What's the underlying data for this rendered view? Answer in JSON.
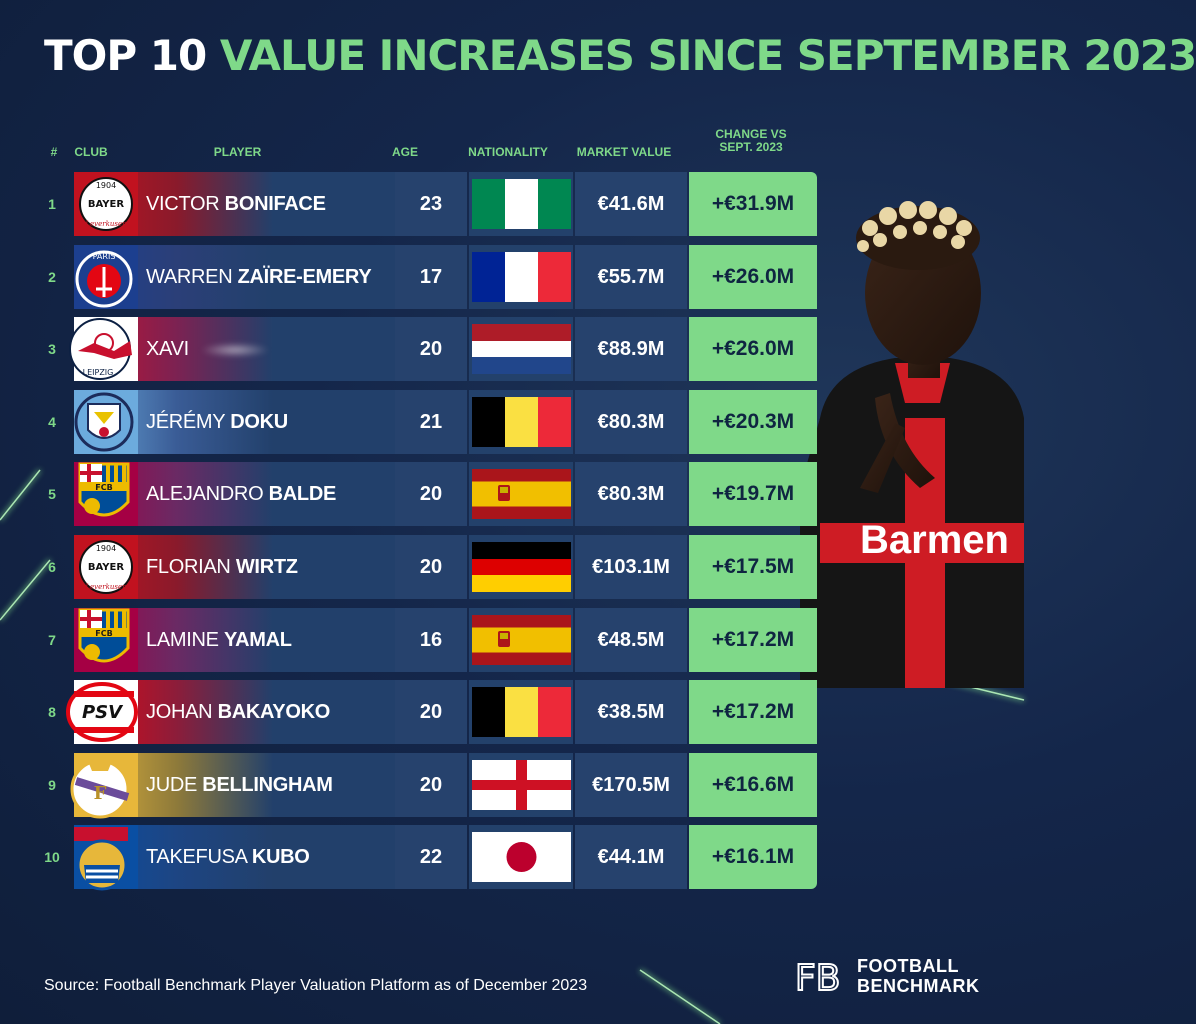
{
  "title": {
    "part1": "TOP 10",
    "part2": "VALUE INCREASES SINCE SEPTEMBER 2023"
  },
  "headers": {
    "rank": "#",
    "club": "CLUB",
    "player": "PLAYER",
    "age": "AGE",
    "nationality": "NATIONALITY",
    "market_value": "MARKET VALUE",
    "change_line1": "CHANGE VS",
    "change_line2": "SEPT. 2023"
  },
  "chart_data": {
    "type": "table",
    "title": "TOP 10 VALUE INCREASES SINCE SEPTEMBER 2023",
    "columns": [
      "#",
      "CLUB",
      "PLAYER",
      "AGE",
      "NATIONALITY",
      "MARKET VALUE",
      "CHANGE VS SEPT. 2023"
    ],
    "rows": [
      {
        "rank": "1",
        "club": "Bayer Leverkusen",
        "first": "VICTOR",
        "last": "BONIFACE",
        "age": "23",
        "nationality": "Nigeria",
        "market_value": "€41.6M",
        "change": "+€31.9M"
      },
      {
        "rank": "2",
        "club": "Paris Saint-Germain",
        "first": "WARREN",
        "last": "ZAÏRE-EMERY",
        "age": "17",
        "nationality": "France",
        "market_value": "€55.7M",
        "change": "+€26.0M"
      },
      {
        "rank": "3",
        "club": "RB Leipzig",
        "first": "XAVI",
        "last": "",
        "age": "20",
        "nationality": "Netherlands",
        "market_value": "€88.9M",
        "change": "+€26.0M"
      },
      {
        "rank": "4",
        "club": "Manchester City",
        "first": "JÉRÉMY",
        "last": "DOKU",
        "age": "21",
        "nationality": "Belgium",
        "market_value": "€80.3M",
        "change": "+€20.3M"
      },
      {
        "rank": "5",
        "club": "FC Barcelona",
        "first": "ALEJANDRO",
        "last": "BALDE",
        "age": "20",
        "nationality": "Spain",
        "market_value": "€80.3M",
        "change": "+€19.7M"
      },
      {
        "rank": "6",
        "club": "Bayer Leverkusen",
        "first": "FLORIAN",
        "last": "WIRTZ",
        "age": "20",
        "nationality": "Germany",
        "market_value": "€103.1M",
        "change": "+€17.5M"
      },
      {
        "rank": "7",
        "club": "FC Barcelona",
        "first": "LAMINE",
        "last": "YAMAL",
        "age": "16",
        "nationality": "Spain",
        "market_value": "€48.5M",
        "change": "+€17.2M"
      },
      {
        "rank": "8",
        "club": "PSV",
        "first": "JOHAN",
        "last": "BAKAYOKO",
        "age": "20",
        "nationality": "Belgium",
        "market_value": "€38.5M",
        "change": "+€17.2M"
      },
      {
        "rank": "9",
        "club": "Real Madrid",
        "first": "JUDE",
        "last": "BELLINGHAM",
        "age": "20",
        "nationality": "England",
        "market_value": "€170.5M",
        "change": "+€16.6M"
      },
      {
        "rank": "10",
        "club": "Real Sociedad",
        "first": "TAKEFUSA",
        "last": "KUBO",
        "age": "22",
        "nationality": "Japan",
        "market_value": "€44.1M",
        "change": "+€16.1M"
      }
    ]
  },
  "footer": {
    "source": "Source: Football Benchmark Player Valuation Platform as of December 2023",
    "logo_line1": "FOOTBALL",
    "logo_line2": "BENCHMARK",
    "logo_mark": "FB"
  },
  "crest_text": {
    "leverkusen_year": "1904",
    "leverkusen_name": "BAYER",
    "leverkusen_city": "Leverkusen",
    "psg": "PARIS",
    "leipzig": "LEIPZIG",
    "barca": "FCB",
    "psv": "PSV"
  },
  "photo_text": "Barmen",
  "colors": {
    "accent_green": "#7fd989",
    "background": "#14264a",
    "cell": "#26426d"
  }
}
